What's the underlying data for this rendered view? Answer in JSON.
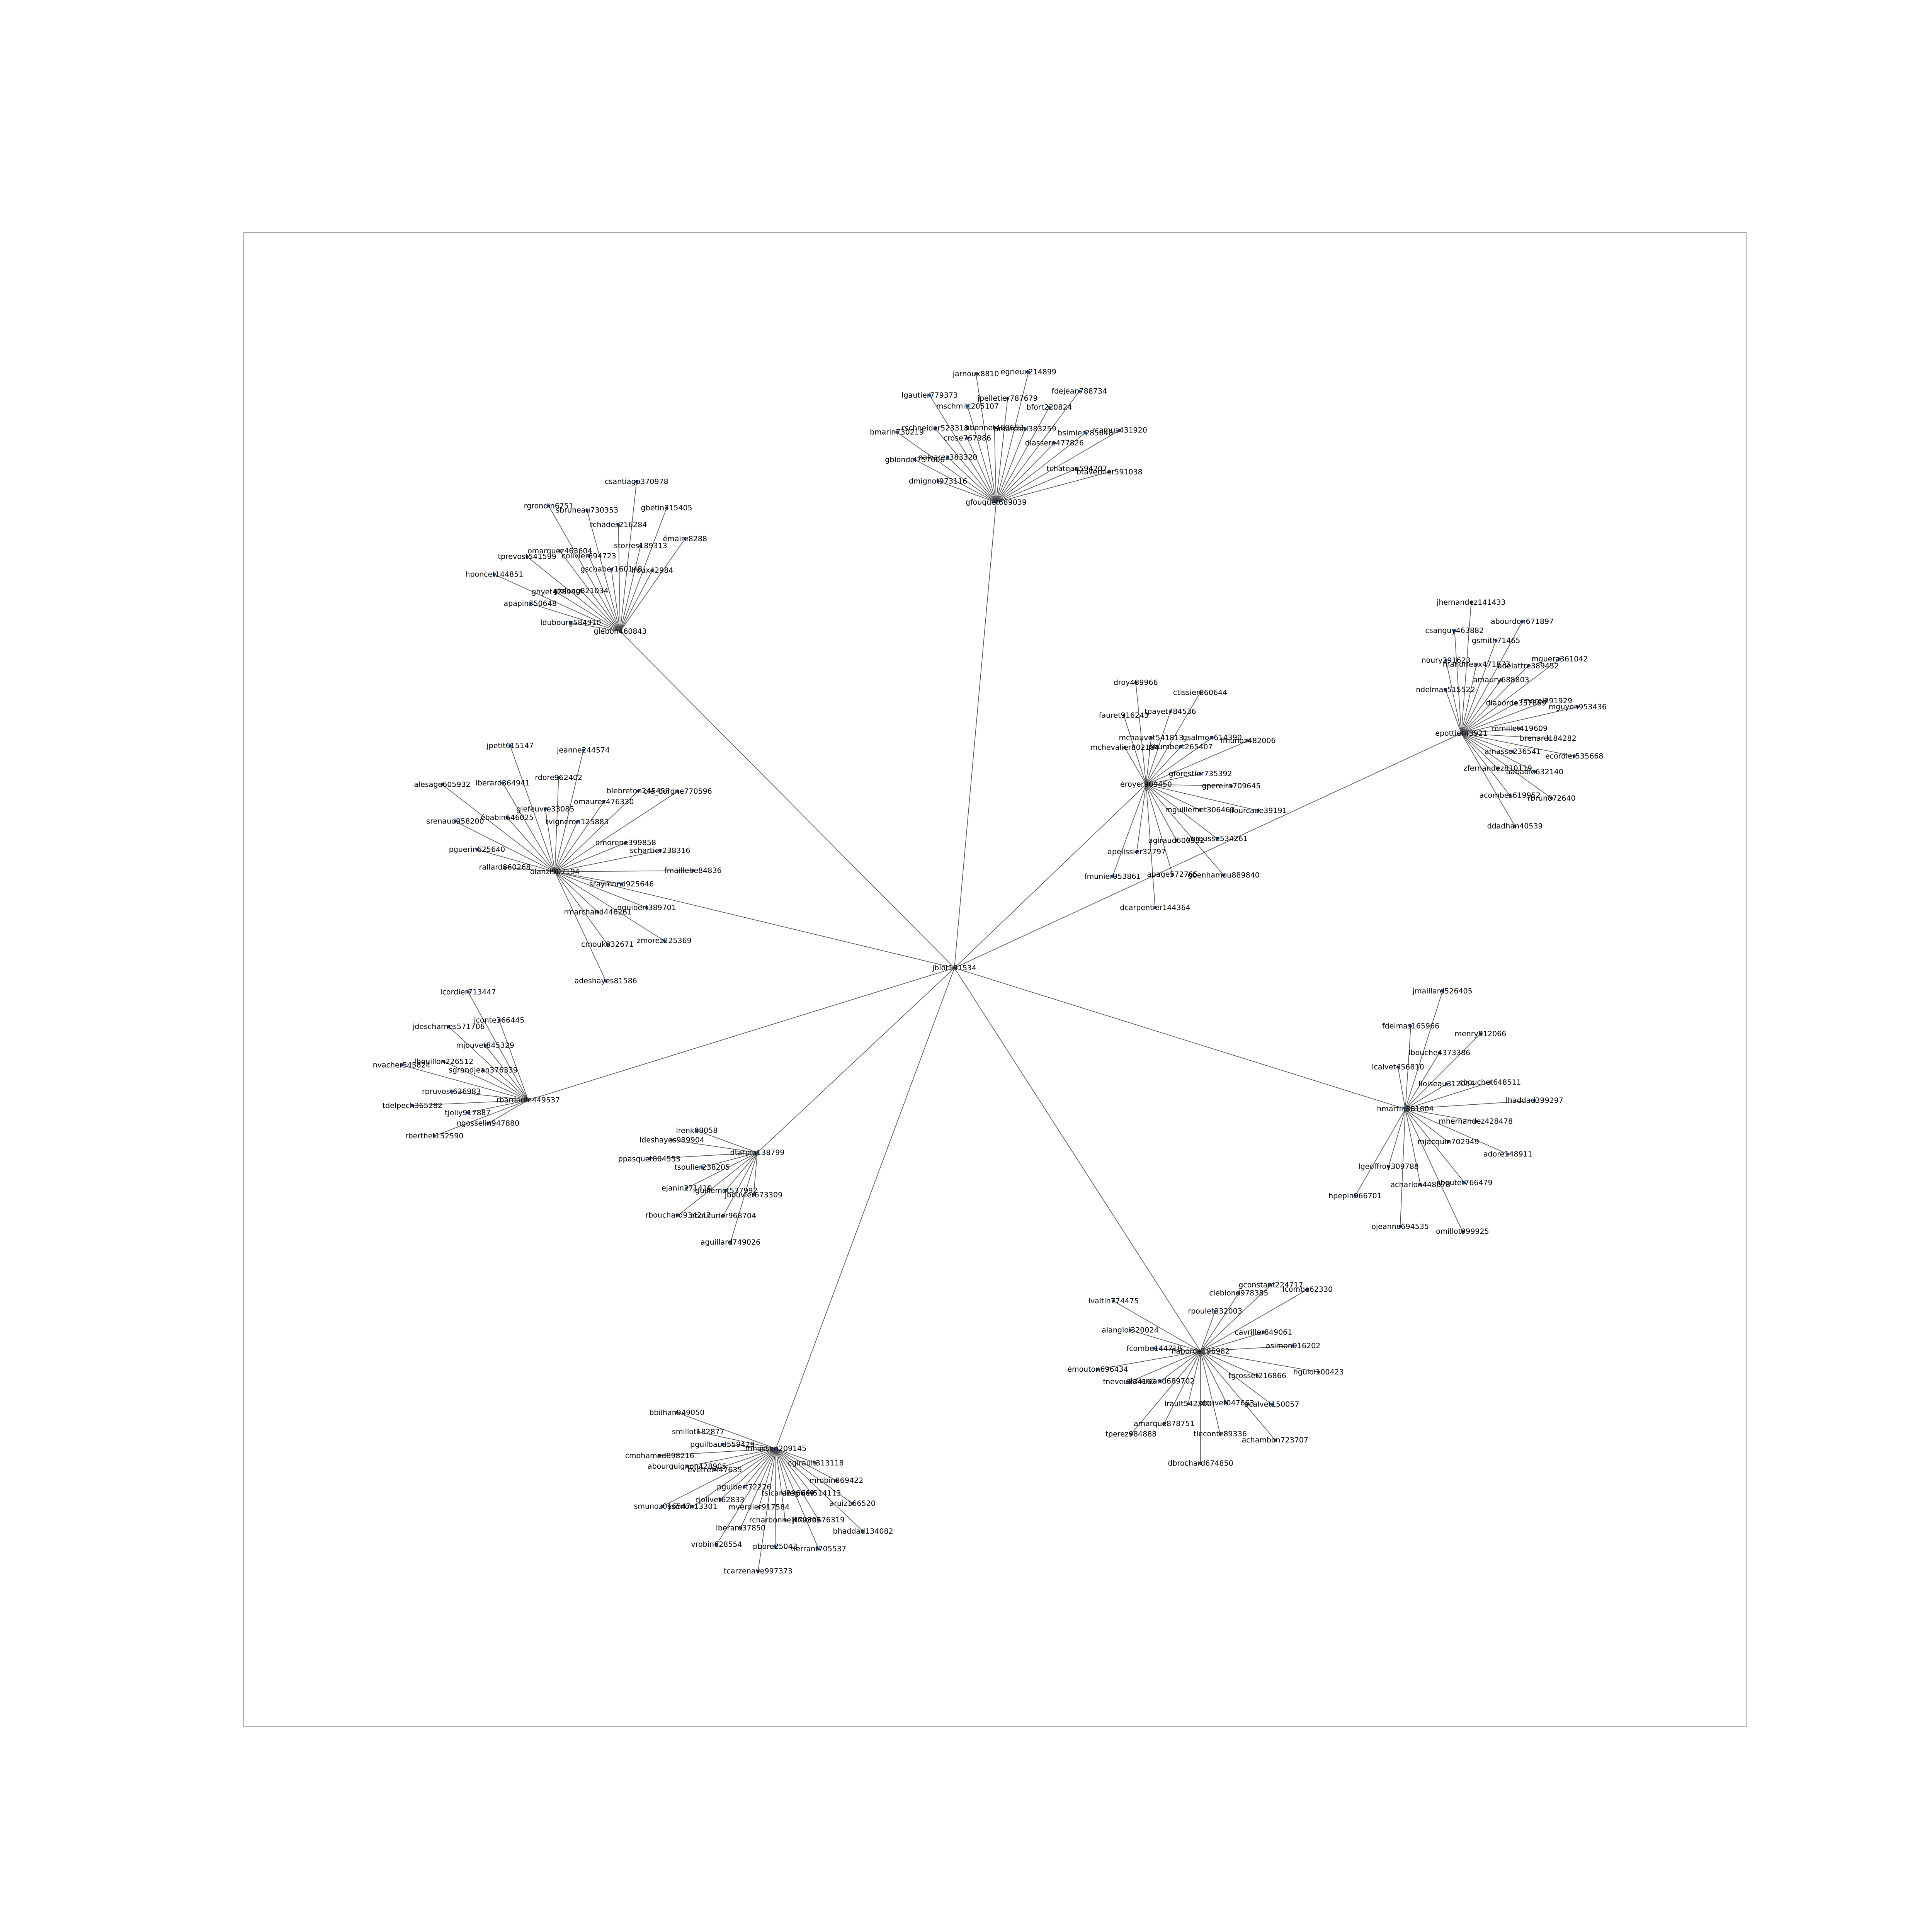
{
  "graph": {
    "center": "jblot191534",
    "hubs": [
      {
        "name": "gfouquet689039",
        "leaves": [
          "dmignot973116",
          "gblondel757606",
          "bmarin730219",
          "nalvarez383320",
          "rschneider523318",
          "lgautier779373",
          "crose767986",
          "mschmitt205107",
          "jarnoux8810",
          "abonnet460653",
          "jpelletier787679",
          "egrieux214899",
          "amarchal383259",
          "bfort220824",
          "fdejean788734",
          "dlassere477826",
          "bsimier285648",
          "rcamus431920",
          "tchateau594207",
          "btavernier591038"
        ]
      },
      {
        "name": "glebon460843",
        "leaves": [
          "ldubourg584310",
          "apapin350648",
          "hponcet144851",
          "ghyet428940",
          "tprevost541599",
          "glelong821034",
          "omarquez463604",
          "rgrondin6751",
          "colivier694723",
          "sbruneau730353",
          "gschaber160148",
          "rchades216284",
          "csantiago370978",
          "storres189313",
          "gbetin315405",
          "lroux42984",
          "émaire8288"
        ]
      },
      {
        "name": "olanzi907194",
        "leaves": [
          "rallard860268",
          "pguerin625640",
          "srenaud958200",
          "alesage605932",
          "ébabin646025",
          "lberard364941",
          "jpetit615147",
          "glefeuvre33085",
          "rdore962402",
          "jeanne244574",
          "tvigneron125883",
          "omaurez476330",
          "blebreton245453",
          "ole_borgne770596",
          "dmorene399858",
          "schartier238316",
          "fmaillebe84836",
          "sraymond925646",
          "nguibert389701",
          "zmorez225369",
          "rmarchand446261",
          "cmouk832671",
          "adeshayes81586"
        ]
      },
      {
        "name": "éroyer909450",
        "leaves": [
          "mchevalier802184",
          "fauret916243",
          "droy489966",
          "mchauvet541813",
          "tpayet784536",
          "ctissier860644",
          "phumbert265407",
          "gsalmon614390",
          "fmunoz482006",
          "gforestier735392",
          "gpereira709645",
          "lfourcade39191",
          "mguillemet306463",
          "vbrousse534261",
          "gbenhamou889840",
          "agiraud600932",
          "apage572765",
          "dcarpentier144364",
          "apelissier32797",
          "fmunier953861"
        ]
      },
      {
        "name": "epottier43921",
        "leaves": [
          "ndelmas515522",
          "noury291623",
          "csanguy463882",
          "jhernandez141433",
          "mandrieux471873",
          "gsmith71465",
          "abourdon671897",
          "amaury688803",
          "adelattre389452",
          "mguera361042",
          "dlaborde357869",
          "rmorel291929",
          "mguyon953436",
          "mmillet419609",
          "brenard184282",
          "ecordier535668",
          "amasse236541",
          "aabadie632140",
          "rbrun872640",
          "zfernandez810119",
          "acombes619952",
          "ddadhan40539"
        ]
      },
      {
        "name": "hmartin381604",
        "leaves": [
          "lcalvet456810",
          "fdelmas165966",
          "jmaillard526405",
          "lbouche4373386",
          "menry912066",
          "lloiseau312054",
          "cbouchet648511",
          "lhaddad399297",
          "mhernandez428478",
          "adore148911",
          "mjacquin702949",
          "sboutet766479",
          "omillot999925",
          "acharlon448678",
          "ojeanne694535",
          "lgeoffroy309788",
          "hpepin966701"
        ]
      },
      {
        "name": "flaborde196982",
        "leaves": [
          "rpoulet332003",
          "cleblond978385",
          "gconstant224717",
          "lcombe62330",
          "cavriller849061",
          "asimon916202",
          "hguiol100423",
          "tgrosset216866",
          "acalvet150057",
          "achambon723707",
          "olouvet047663",
          "tleconte89336",
          "dbrochard674850",
          "lrault542300",
          "amarque878751",
          "tperez984888",
          "elallemand689702",
          "fneveu534163",
          "émouton696434",
          "fcombe144718",
          "alangloi320024",
          "lvaltin774475"
        ]
      },
      {
        "name": "rbardouin449537",
        "leaves": [
          "ngosselin947880",
          "rberthet152590",
          "tjolly917887",
          "tdelpech365282",
          "rpruvost636983",
          "nvacher545824",
          "lbouillon226512",
          "sgrandjean376339",
          "jdescharnes571706",
          "mjouvet845329",
          "lcordier713447",
          "jconte366445"
        ]
      },
      {
        "name": "dtarpin138799",
        "leaves": [
          "jbouvier673309",
          "aguillard749026",
          "acouturier968704",
          "lguillemot537992",
          "rbouchard934247",
          "ejanin271410",
          "tsoulier238205",
          "ppasquet804553",
          "ldeshayes989904",
          "lrenk09058"
        ]
      },
      {
        "name": "mhussen209145",
        "leaves": [
          "cgirault313118",
          "mrobin869422",
          "aruiz166520",
          "bhaddad134082",
          "aregnier514113",
          "jtraore576319",
          "tlerrant705537",
          "tsicard296669",
          "rcharbonnel479305",
          "pbore25043",
          "tcarzenave997373",
          "mverdier917584",
          "lberard37850",
          "vrobin628554",
          "pguibert72226",
          "rjolivet62833",
          "ysimon13301",
          "smunoz016547",
          "everret447635",
          "abourguignon428905",
          "cmohamed898216",
          "pguilbaud559429",
          "smillot182877",
          "bbilhan949050"
        ]
      }
    ]
  }
}
